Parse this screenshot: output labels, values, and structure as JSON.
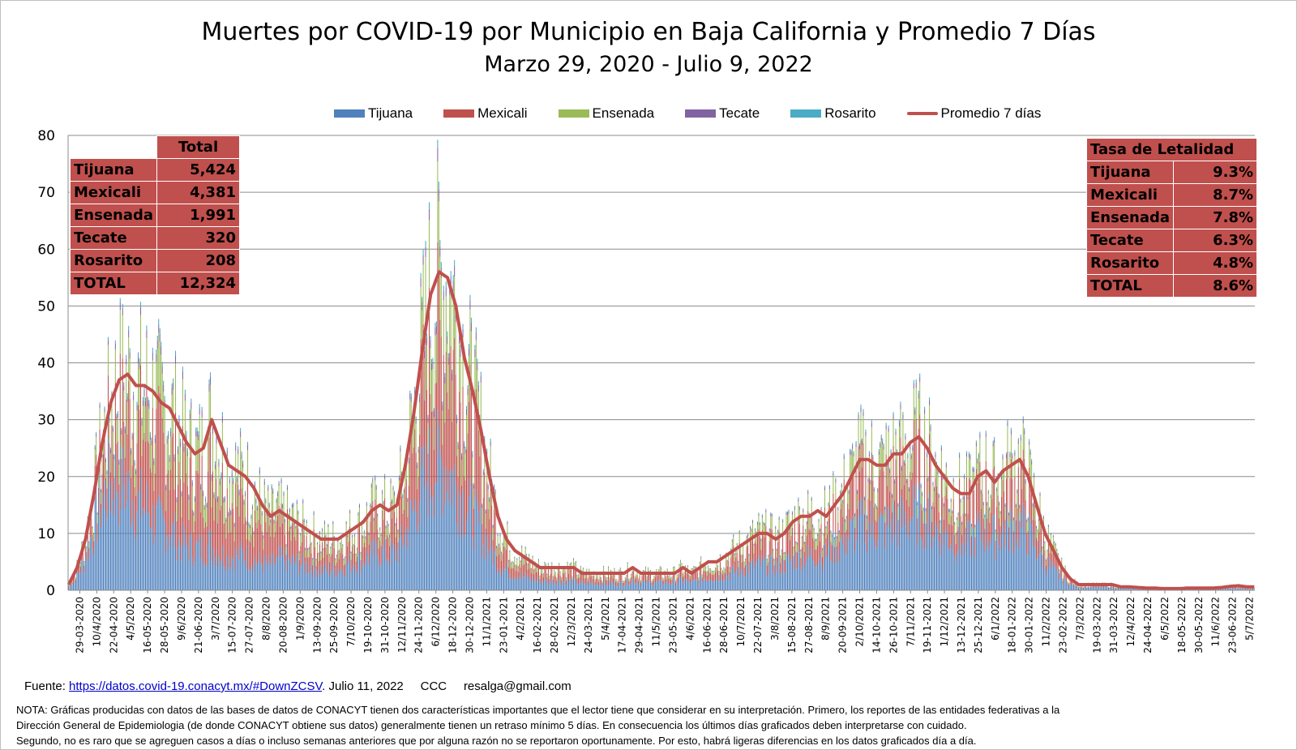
{
  "title": "Muertes por COVID-19 por Municipio en Baja California y Promedio 7 Días",
  "subtitle": "Marzo 29, 2020 - Julio 9, 2022",
  "legend": [
    {
      "name": "Tijuana",
      "color": "#4f81bd",
      "kind": "bar"
    },
    {
      "name": "Mexicali",
      "color": "#c0504d",
      "kind": "bar"
    },
    {
      "name": "Ensenada",
      "color": "#9bbb59",
      "kind": "bar"
    },
    {
      "name": "Tecate",
      "color": "#8064a2",
      "kind": "bar"
    },
    {
      "name": "Rosarito",
      "color": "#4bacc6",
      "kind": "bar"
    },
    {
      "name": "Promedio 7 días",
      "color": "#c0504d",
      "kind": "line"
    }
  ],
  "table_total": {
    "header": "Total",
    "rows": [
      {
        "label": "Tijuana",
        "value": "5,424"
      },
      {
        "label": "Mexicali",
        "value": "4,381"
      },
      {
        "label": "Ensenada",
        "value": "1,991"
      },
      {
        "label": "Tecate",
        "value": "320"
      },
      {
        "label": "Rosarito",
        "value": "208"
      },
      {
        "label": "TOTAL",
        "value": "12,324"
      }
    ]
  },
  "table_tasa": {
    "header": "Tasa de Letalidad",
    "rows": [
      {
        "label": "Tijuana",
        "value": "9.3%"
      },
      {
        "label": "Mexicali",
        "value": "8.7%"
      },
      {
        "label": "Ensenada",
        "value": "7.8%"
      },
      {
        "label": "Tecate",
        "value": "6.3%"
      },
      {
        "label": "Rosarito",
        "value": "4.8%"
      },
      {
        "label": "TOTAL",
        "value": "8.6%"
      }
    ]
  },
  "footer": {
    "fuente_label": "Fuente:",
    "fuente_link": "https://datos.covid-19.conacyt.mx/#DownZCSV",
    "fuente_rest": ". Julio 11, 2022     CCC     resalga@gmail.com",
    "nota_lines": [
      "NOTA: Gráficas producidas con datos de las bases de datos de CONACYT tienen dos características importantes que el lector tiene que considerar en su interpretación.  Primero, los reportes de las entidades federativas  a la",
      "Dirección General  de Epidemiologia (de donde CONACYT obtiene sus datos) generalmente tienen un retraso mínimo 5 días.  En consecuencia los últimos días graficados deben interpretarse  con cuidado.",
      "Segundo, no es raro que se agreguen  casos a días o incluso semanas anteriores  que por alguna razón no se reportaron oportunamente.  Por esto, habrá ligeras diferencias en los datos  graficados día a día."
    ]
  },
  "chart_data": {
    "type": "bar",
    "stacked": true,
    "ylim": [
      0,
      80
    ],
    "yticks": [
      0,
      10,
      20,
      30,
      40,
      50,
      60,
      70,
      80
    ],
    "grid": true,
    "legend_position": "top",
    "x_tick_labels": [
      "29-03-2020",
      "10/4/2020",
      "22-04-2020",
      "4/5/2020",
      "16-05-2020",
      "28-05-2020",
      "9/6/2020",
      "21-06-2020",
      "3/7/2020",
      "15-07-2020",
      "27-07-2020",
      "8/8/2020",
      "20-08-2020",
      "1/9/2020",
      "13-09-2020",
      "25-09-2020",
      "7/10/2020",
      "19-10-2020",
      "31-10-2020",
      "12/11/2020",
      "24-11-2020",
      "6/12/2020",
      "18-12-2020",
      "30-12-2020",
      "11/1/2021",
      "23-01-2021",
      "4/2/2021",
      "16-02-2021",
      "28-02-2021",
      "12/3/2021",
      "24-03-2021",
      "5/4/2021",
      "17-04-2021",
      "29-04-2021",
      "11/5/2021",
      "23-05-2021",
      "4/6/2021",
      "16-06-2021",
      "28-06-2021",
      "10/7/2021",
      "22-07-2021",
      "3/8/2021",
      "15-08-2021",
      "27-08-2021",
      "8/9/2021",
      "20-09-2021",
      "2/10/2021",
      "14-10-2021",
      "26-10-2021",
      "7/11/2021",
      "19-11-2021",
      "1/12/2021",
      "13-12-2021",
      "25-12-2021",
      "6/1/2022",
      "18-01-2022",
      "30-01-2022",
      "11/2/2022",
      "23-02-2022",
      "7/3/2022",
      "19-03-2022",
      "31-03-2022",
      "12/4/2022",
      "24-04-2022",
      "6/5/2022",
      "18-05-2022",
      "30-05-2022",
      "11/6/2022",
      "23-06-2022",
      "5/7/2022"
    ],
    "series_names": [
      "Tijuana",
      "Mexicali",
      "Ensenada",
      "Tecate",
      "Rosarito"
    ],
    "weekly_total_avg": [
      1,
      4,
      9,
      17,
      26,
      33,
      37,
      38,
      36,
      36,
      35,
      33,
      32,
      29,
      26,
      24,
      25,
      30,
      26,
      22,
      21,
      20,
      18,
      15,
      13,
      14,
      13,
      12,
      11,
      10,
      9,
      9,
      9,
      10,
      11,
      12,
      14,
      15,
      14,
      15,
      22,
      31,
      42,
      52,
      56,
      55,
      50,
      41,
      35,
      28,
      20,
      13,
      9,
      7,
      6,
      5,
      4,
      4,
      4,
      4,
      4,
      3,
      3,
      3,
      3,
      3,
      3,
      4,
      3,
      3,
      3,
      3,
      3,
      4,
      3,
      4,
      5,
      5,
      6,
      7,
      8,
      9,
      10,
      10,
      9,
      10,
      12,
      13,
      13,
      14,
      13,
      15,
      17,
      20,
      23,
      23,
      22,
      22,
      24,
      24,
      26,
      27,
      25,
      22,
      20,
      18,
      17,
      17,
      20,
      21,
      19,
      21,
      22,
      23,
      20,
      15,
      10,
      7,
      4,
      2,
      1,
      1,
      1,
      1,
      1,
      0.6,
      0.6,
      0.5,
      0.4,
      0.4,
      0.3,
      0.3,
      0.3,
      0.4,
      0.4,
      0.4,
      0.4,
      0.5,
      0.7,
      0.8,
      0.6
    ],
    "weekly_share_tijuana": [
      0.55,
      0.6,
      0.65,
      0.62,
      0.6,
      0.55,
      0.5,
      0.45,
      0.42,
      0.4,
      0.35,
      0.35,
      0.32,
      0.3,
      0.3,
      0.3,
      0.28,
      0.25,
      0.25,
      0.28,
      0.3,
      0.3,
      0.3,
      0.32,
      0.35,
      0.4,
      0.4,
      0.4,
      0.4,
      0.4,
      0.4,
      0.4,
      0.42,
      0.45,
      0.45,
      0.45,
      0.45,
      0.45,
      0.45,
      0.45,
      0.45,
      0.45,
      0.42,
      0.4,
      0.4,
      0.38,
      0.38,
      0.38,
      0.38,
      0.38,
      0.38,
      0.38,
      0.4,
      0.4,
      0.4,
      0.4,
      0.4,
      0.4,
      0.4,
      0.4,
      0.4,
      0.4,
      0.4,
      0.4,
      0.4,
      0.4,
      0.45,
      0.45,
      0.45,
      0.45,
      0.45,
      0.45,
      0.45,
      0.45,
      0.45,
      0.45,
      0.45,
      0.45,
      0.45,
      0.45,
      0.45,
      0.45,
      0.45,
      0.45,
      0.45,
      0.45,
      0.45,
      0.45,
      0.45,
      0.45,
      0.5,
      0.5,
      0.5,
      0.5,
      0.5,
      0.5,
      0.5,
      0.5,
      0.5,
      0.5,
      0.5,
      0.5,
      0.5,
      0.5,
      0.5,
      0.5,
      0.5,
      0.5,
      0.5,
      0.5,
      0.5,
      0.5,
      0.5,
      0.5,
      0.5,
      0.5,
      0.5,
      0.5,
      0.5,
      0.5,
      0.5,
      0.5,
      0.5,
      0.5,
      0.5,
      0.5,
      0.5,
      0.5,
      0.5,
      0.5,
      0.5,
      0.5,
      0.5,
      0.5,
      0.5,
      0.5,
      0.5,
      0.5,
      0.5,
      0.5,
      0.5,
      0.5,
      0.5,
      0.5,
      0.5,
      0.5,
      0.5,
      0.5
    ]
  }
}
